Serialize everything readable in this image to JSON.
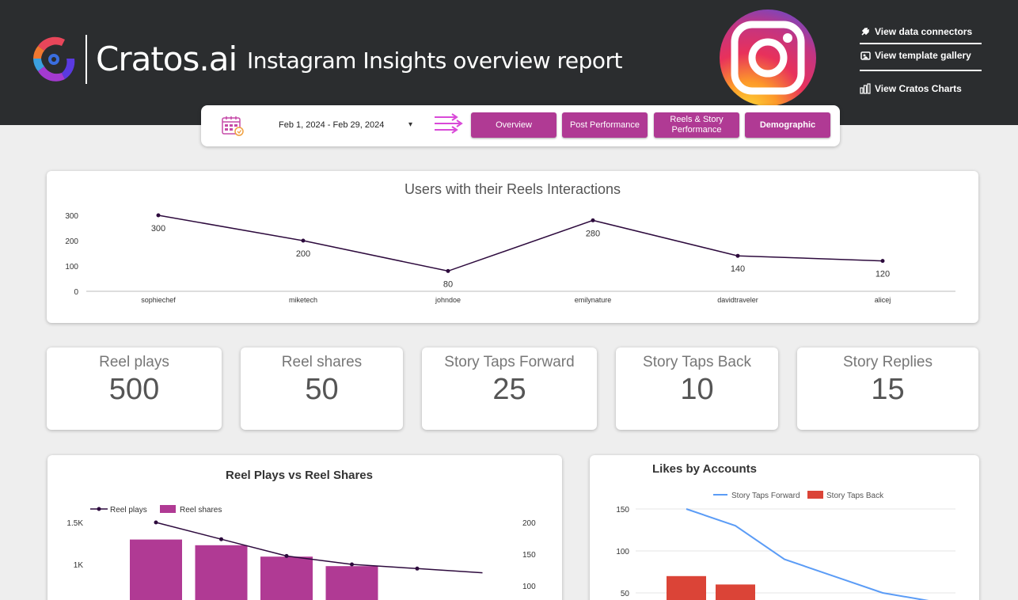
{
  "header": {
    "logo_text": "Cratos.ai",
    "report_title": "Instagram Insights overview report",
    "links": [
      {
        "label": "View data connectors",
        "icon": "plug-icon"
      },
      {
        "label": "View template gallery",
        "icon": "gallery-icon"
      },
      {
        "label": "View Cratos Charts",
        "icon": "bar-chart-icon"
      }
    ]
  },
  "controls": {
    "date_range": "Feb 1, 2024 - Feb 29, 2024",
    "nav": [
      {
        "label": "Overview"
      },
      {
        "label": "Post Performance"
      },
      {
        "label_line1": "Reels & Story",
        "label_line2": "Performance"
      },
      {
        "label": "Demographic"
      }
    ]
  },
  "colors": {
    "accent": "#b03a94",
    "header_bg": "#2b2d2f",
    "line_dark": "#2d0a3d",
    "blue_line": "#5b9cf6",
    "red_bar": "#db4437"
  },
  "kpis": [
    {
      "label": "Reel plays",
      "value": "500"
    },
    {
      "label": "Reel shares",
      "value": "50"
    },
    {
      "label": "Story Taps Forward",
      "value": "25"
    },
    {
      "label": "Story Taps Back",
      "value": "10"
    },
    {
      "label": "Story Replies",
      "value": "15"
    }
  ],
  "chart_data": [
    {
      "type": "line",
      "title": "Users with their Reels Interactions",
      "categories": [
        "sophiechef",
        "miketech",
        "johndoe",
        "emilynature",
        "davidtraveler",
        "alicej"
      ],
      "values": [
        300,
        200,
        80,
        280,
        140,
        120
      ],
      "yticks": [
        "0",
        "100",
        "200",
        "300"
      ],
      "ylim": [
        0,
        300
      ]
    },
    {
      "type": "bar",
      "title": "Reel Plays vs Reel Shares",
      "legend": [
        "Reel plays",
        "Reel shares"
      ],
      "series": [
        {
          "name": "Reel plays",
          "type": "line",
          "axis": "left",
          "values": [
            1500,
            1300,
            1100,
            1000,
            950,
            900
          ]
        },
        {
          "name": "Reel shares",
          "type": "bar",
          "axis": "right",
          "values": [
            173,
            164,
            146,
            131
          ]
        }
      ],
      "yticks_left": [
        "1.5K",
        "1K"
      ],
      "yticks_right": [
        "200",
        "150",
        "100"
      ]
    },
    {
      "type": "bar",
      "title": "Likes by Accounts",
      "legend": [
        "Story Taps Forward",
        "Story Taps Back"
      ],
      "series": [
        {
          "name": "Story Taps Forward",
          "type": "line",
          "values": [
            150,
            130,
            90,
            70,
            50,
            40
          ]
        },
        {
          "name": "Story Taps Back",
          "type": "bar",
          "values": [
            70,
            60
          ]
        }
      ],
      "yticks": [
        "150",
        "100",
        "50"
      ]
    }
  ]
}
